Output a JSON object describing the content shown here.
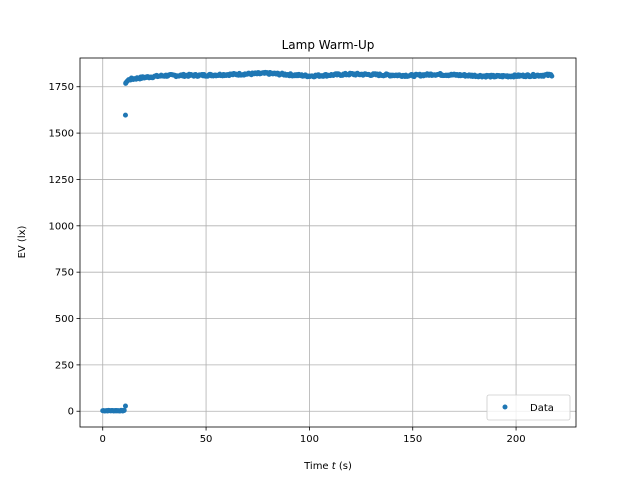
{
  "chart_data": {
    "type": "scatter",
    "title": "Lamp Warm-Up",
    "xlabel_pre": "Time ",
    "xlabel_var": "t",
    "xlabel_post": " (s)",
    "ylabel": "EV (lx)",
    "xlim": [
      -11,
      229
    ],
    "ylim": [
      -85,
      1905
    ],
    "xticks": [
      0,
      50,
      100,
      150,
      200
    ],
    "yticks": [
      0,
      250,
      500,
      750,
      1000,
      1250,
      1500,
      1750
    ],
    "grid": true,
    "legend": {
      "position": "lower-right",
      "entries": [
        "Data"
      ]
    },
    "colors": {
      "series": "#1f77b4",
      "grid": "#b0b0b0"
    },
    "series": [
      {
        "name": "Data",
        "segments": [
          {
            "x_start": 0,
            "x_end": 10.5,
            "step": 0.4,
            "y": 3,
            "jitter": 2
          },
          {
            "x_start": 11.2,
            "x_end": 217.5,
            "step": 0.45,
            "curve": [
              [
                11.2,
                1775
              ],
              [
                13,
                1790
              ],
              [
                20,
                1800
              ],
              [
                30,
                1810
              ],
              [
                50,
                1812
              ],
              [
                80,
                1822
              ],
              [
                100,
                1808
              ],
              [
                120,
                1818
              ],
              [
                150,
                1810
              ],
              [
                160,
                1817
              ],
              [
                190,
                1806
              ],
              [
                217.5,
                1813
              ]
            ],
            "jitter": 6
          }
        ],
        "points": [
          [
            11,
            1597
          ],
          [
            11,
            28
          ],
          [
            11.1,
            1768
          ]
        ]
      }
    ]
  }
}
